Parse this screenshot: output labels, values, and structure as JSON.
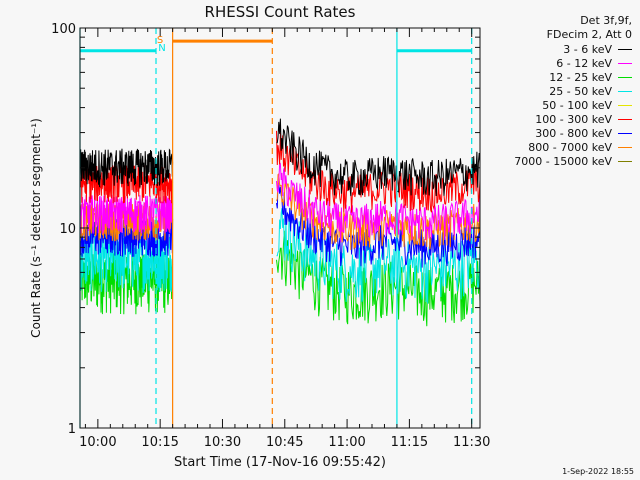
{
  "chart_data": {
    "type": "line",
    "title": "RHESSI Count Rates",
    "xlabel": "Start Time (17-Nov-16 09:55:42)",
    "ylabel": "Count Rate (s⁻¹ detector segment⁻¹)",
    "yscale": "log",
    "ylim": [
      1,
      100
    ],
    "y_ticks": [
      {
        "value": 1,
        "label": "1"
      },
      {
        "value": 10,
        "label": "10"
      },
      {
        "value": 100,
        "label": "100"
      }
    ],
    "xlim": [
      "09:55:42",
      "11:32:00"
    ],
    "x_ticks": [
      {
        "time": "10:00",
        "label": "10:00"
      },
      {
        "time": "10:15",
        "label": "10:15"
      },
      {
        "time": "10:30",
        "label": "10:30"
      },
      {
        "time": "10:45",
        "label": "10:45"
      },
      {
        "time": "11:00",
        "label": "11:00"
      },
      {
        "time": "11:15",
        "label": "11:15"
      },
      {
        "time": "11:30",
        "label": "11:30"
      }
    ],
    "legend_header": [
      "Det 3f,9f,",
      "FDecim 2, Att 0"
    ],
    "legend_position": "right",
    "data_gap": [
      "10:18",
      "10:43"
    ],
    "series": [
      {
        "name": "3 - 6 keV",
        "color": "#000000",
        "level_start": 20.5,
        "level_end": 20
      },
      {
        "name": "6 - 12 keV",
        "color": "#ff00ff",
        "level_start": 12,
        "level_end": 12
      },
      {
        "name": "12 - 25 keV",
        "color": "#00dd00",
        "level_start": 5.6,
        "level_end": 5.4
      },
      {
        "name": "25 - 50 keV",
        "color": "#00e5e5",
        "level_start": 7.2,
        "level_end": 7
      },
      {
        "name": "50 - 100 keV",
        "color": "#e5e500",
        "level_start": null,
        "level_end": null
      },
      {
        "name": "100 - 300 keV",
        "color": "#ff0000",
        "level_start": 17,
        "level_end": 17
      },
      {
        "name": "300 - 800 keV",
        "color": "#0000ff",
        "level_start": 9.2,
        "level_end": 9
      },
      {
        "name": "800 - 7000 keV",
        "color": "#ff8000",
        "level_start": 11,
        "level_end": 11
      },
      {
        "name": "7000 - 15000 keV",
        "color": "#808000",
        "level_start": null,
        "level_end": null
      }
    ],
    "markers": [
      {
        "time": "09:55:42",
        "color": "#00e5e5",
        "style": "solid"
      },
      {
        "time": "10:14",
        "color": "#00e5e5",
        "style": "dashed"
      },
      {
        "time": "10:18",
        "color": "#ff8000",
        "style": "solid"
      },
      {
        "time": "10:42",
        "color": "#ff8000",
        "style": "dashed"
      },
      {
        "time": "11:12",
        "color": "#00e5e5",
        "style": "solid"
      },
      {
        "time": "11:30",
        "color": "#00e5e5",
        "style": "dashed"
      }
    ],
    "bars": [
      {
        "start": "09:55:42",
        "end": "10:14",
        "value": 77,
        "color": "#00e5e5"
      },
      {
        "start": "10:18",
        "end": "10:42",
        "value": 86,
        "color": "#ff8000"
      },
      {
        "start": "11:12",
        "end": "11:30",
        "value": 77,
        "color": "#00e5e5"
      }
    ],
    "flag_labels": [
      {
        "text": "S",
        "color": "#ff8000"
      },
      {
        "text": "N",
        "color": "#00e5e5"
      }
    ]
  },
  "footer": {
    "timestamp": "1-Sep-2022 18:55"
  }
}
